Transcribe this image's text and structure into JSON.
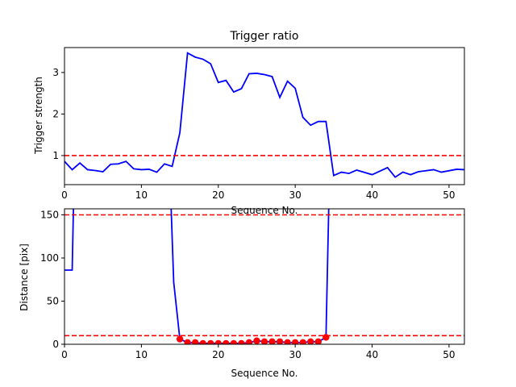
{
  "chart_data": [
    {
      "type": "line",
      "title": "Trigger ratio",
      "xlabel": "Sequence No.",
      "ylabel": "Trigger strength",
      "xlim": [
        0,
        52
      ],
      "ylim": [
        0.3,
        3.6
      ],
      "xticks": [
        "0",
        "10",
        "20",
        "30",
        "40",
        "50"
      ],
      "yticks": [
        "1",
        "2",
        "3"
      ],
      "series": [
        {
          "color": "#0000ff",
          "x": [
            0,
            1,
            2,
            3,
            4,
            5,
            6,
            7,
            8,
            9,
            10,
            11,
            12,
            13,
            14,
            15,
            16,
            17,
            18,
            19,
            20,
            21,
            22,
            23,
            24,
            25,
            26,
            27,
            28,
            29,
            30,
            31,
            32,
            33,
            34,
            35,
            36,
            37,
            38,
            40,
            42,
            43,
            44,
            45,
            46,
            48,
            49,
            51,
            52
          ],
          "y": [
            0.86,
            0.66,
            0.82,
            0.66,
            0.64,
            0.61,
            0.79,
            0.8,
            0.86,
            0.68,
            0.66,
            0.67,
            0.6,
            0.8,
            0.74,
            1.55,
            3.47,
            3.37,
            3.32,
            3.21,
            2.76,
            2.81,
            2.53,
            2.61,
            2.97,
            2.98,
            2.95,
            2.9,
            2.4,
            2.79,
            2.62,
            1.92,
            1.73,
            1.82,
            1.82,
            0.52,
            0.6,
            0.57,
            0.65,
            0.54,
            0.71,
            0.48,
            0.6,
            0.54,
            0.61,
            0.66,
            0.6,
            0.67,
            0.66
          ]
        }
      ],
      "hlines": [
        {
          "y": 1.0,
          "color": "#ff0000",
          "style": "dashed"
        }
      ]
    },
    {
      "type": "line",
      "title": "",
      "xlabel": "Sequence No.",
      "ylabel": "Distance [pix]",
      "xlim": [
        0,
        52
      ],
      "ylim": [
        0,
        157
      ],
      "xticks": [
        "0",
        "10",
        "20",
        "30",
        "40",
        "50"
      ],
      "yticks": [
        "0",
        "50",
        "100",
        "150"
      ],
      "series": [
        {
          "color": "#0000ff",
          "x": [
            0,
            1,
            1.2,
            5,
            6,
            13.8,
            14.2,
            15,
            16,
            17,
            18,
            19,
            20,
            21,
            22,
            23,
            24,
            25,
            26,
            27,
            28,
            29,
            30,
            31,
            32,
            33,
            34,
            34.4
          ],
          "y": [
            86,
            86,
            175,
            175,
            175,
            175,
            72,
            6,
            2,
            2,
            1,
            1,
            1,
            1,
            1,
            1,
            2,
            4,
            3,
            3,
            3,
            2,
            2,
            2,
            3,
            3,
            8,
            175
          ]
        },
        {
          "type": "scatter",
          "color": "#ff0000",
          "x": [
            15,
            16,
            17,
            18,
            19,
            20,
            21,
            22,
            23,
            24,
            25,
            26,
            27,
            28,
            29,
            30,
            31,
            32,
            33,
            34
          ],
          "y": [
            6,
            2,
            2,
            1,
            1,
            1,
            1,
            1,
            1,
            2,
            4,
            3,
            3,
            3,
            2,
            2,
            2,
            3,
            3,
            8
          ]
        }
      ],
      "hlines": [
        {
          "y": 150,
          "color": "#ff0000",
          "style": "dashed"
        },
        {
          "y": 10,
          "color": "#ff0000",
          "style": "dashed"
        }
      ]
    }
  ]
}
